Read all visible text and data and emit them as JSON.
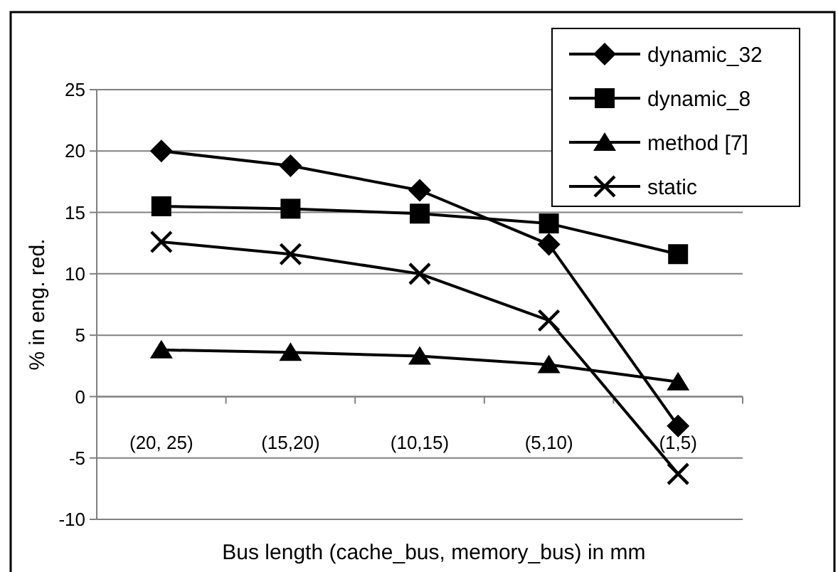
{
  "chart_data": {
    "type": "line",
    "xlabel": "Bus length (cache_bus, memory_bus) in mm",
    "ylabel": "% in eng. red.",
    "categories": [
      "(20, 25)",
      "(15,20)",
      "(10,15)",
      "(5,10)",
      "(1,5)"
    ],
    "series": [
      {
        "name": "dynamic_32",
        "color": "#000000",
        "marker": "diamond",
        "values": [
          20,
          18.8,
          16.8,
          12.4,
          -2.4
        ]
      },
      {
        "name": "dynamic_8",
        "color": "#000000",
        "marker": "square",
        "values": [
          15.5,
          15.3,
          14.9,
          14.1,
          11.6
        ]
      },
      {
        "name": "method [7]",
        "color": "#000000",
        "marker": "triangle",
        "values": [
          3.8,
          3.6,
          3.3,
          2.6,
          1.2
        ]
      },
      {
        "name": "static",
        "color": "#000000",
        "marker": "cross",
        "values": [
          12.6,
          11.6,
          10,
          6.2,
          -6.3
        ]
      }
    ],
    "ylim": [
      -10,
      25
    ],
    "yticks": [
      -10,
      -5,
      0,
      5,
      10,
      15,
      20,
      25
    ],
    "grid": "y",
    "legend": "top right",
    "line_style": "solid"
  }
}
